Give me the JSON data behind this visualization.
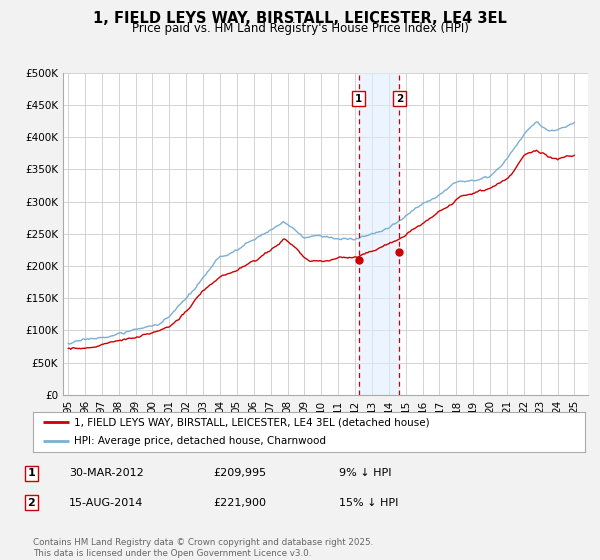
{
  "title": "1, FIELD LEYS WAY, BIRSTALL, LEICESTER, LE4 3EL",
  "subtitle": "Price paid vs. HM Land Registry's House Price Index (HPI)",
  "background_color": "#f2f2f2",
  "plot_bg_color": "#ffffff",
  "grid_color": "#cccccc",
  "sale1_date_num": 2012.21,
  "sale2_date_num": 2014.62,
  "sale1_price": 209995,
  "sale2_price": 221900,
  "legend_entries": [
    "1, FIELD LEYS WAY, BIRSTALL, LEICESTER, LE4 3EL (detached house)",
    "HPI: Average price, detached house, Charnwood"
  ],
  "table_rows": [
    {
      "num": "1",
      "date": "30-MAR-2012",
      "price": "£209,995",
      "hpi": "9% ↓ HPI"
    },
    {
      "num": "2",
      "date": "15-AUG-2014",
      "price": "£221,900",
      "hpi": "15% ↓ HPI"
    }
  ],
  "footer": "Contains HM Land Registry data © Crown copyright and database right 2025.\nThis data is licensed under the Open Government Licence v3.0.",
  "hpi_color": "#7bafd4",
  "price_color": "#cc0000",
  "sale_dot_color": "#cc0000",
  "ylim": [
    0,
    500000
  ],
  "ytick_vals": [
    0,
    50000,
    100000,
    150000,
    200000,
    250000,
    300000,
    350000,
    400000,
    450000,
    500000
  ],
  "xlim_start": 1994.7,
  "xlim_end": 2025.8,
  "xticks": [
    1995,
    1996,
    1997,
    1998,
    1999,
    2000,
    2001,
    2002,
    2003,
    2004,
    2005,
    2006,
    2007,
    2008,
    2009,
    2010,
    2011,
    2012,
    2013,
    2014,
    2015,
    2016,
    2017,
    2018,
    2019,
    2020,
    2021,
    2022,
    2023,
    2024,
    2025
  ]
}
